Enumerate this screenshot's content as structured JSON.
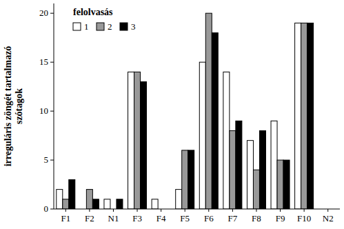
{
  "chart_data": {
    "type": "bar",
    "y_label": "irreguláris zöngét tartalmazó szótagok",
    "legend_title": "felolvasás",
    "legend": "upper left",
    "categories": [
      "F1",
      "F2",
      "N1",
      "F3",
      "F4",
      "F5",
      "F6",
      "F7",
      "F8",
      "F9",
      "F10",
      "N2"
    ],
    "series": [
      {
        "name": "1",
        "color": "#ffffff",
        "values": [
          2,
          0,
          1,
          14,
          1,
          2,
          15,
          14,
          7,
          9,
          19,
          0
        ]
      },
      {
        "name": "2",
        "color": "#999999",
        "values": [
          1,
          2,
          0,
          14,
          0,
          6,
          20,
          8,
          4,
          5,
          19,
          0
        ]
      },
      {
        "name": "3",
        "color": "#000000",
        "values": [
          3,
          1,
          1,
          13,
          0,
          6,
          18,
          9,
          8,
          5,
          19,
          0
        ]
      }
    ],
    "ylim": [
      0,
      21
    ],
    "yticks": [
      0,
      5,
      10,
      15,
      20
    ],
    "grid": false
  }
}
